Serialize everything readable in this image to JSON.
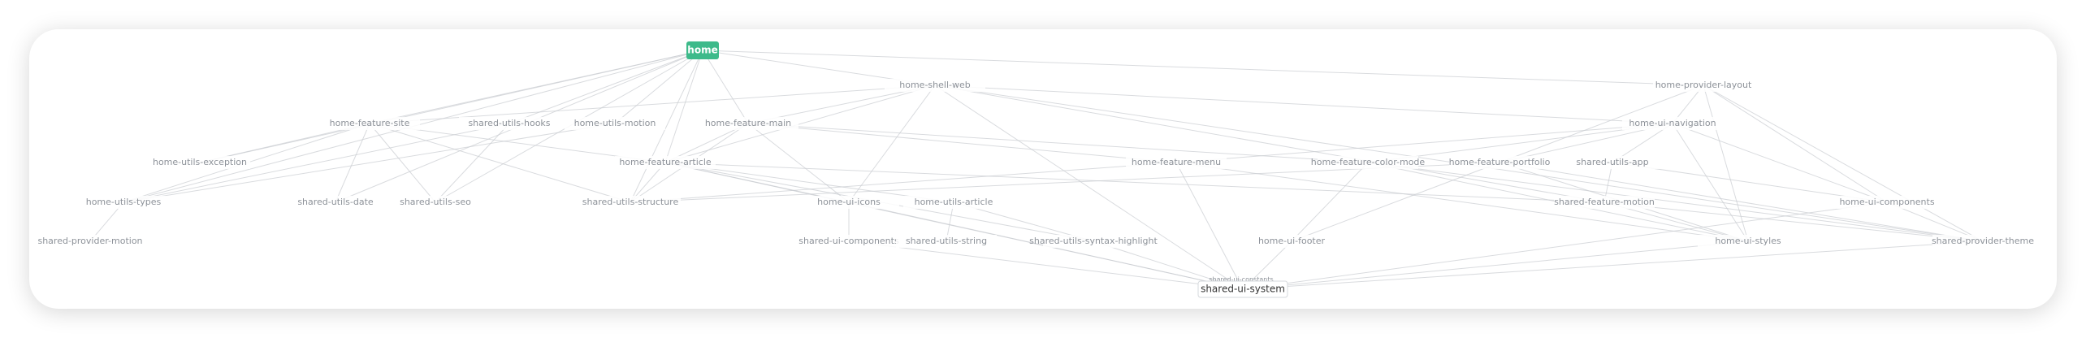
{
  "nodes": [
    "home",
    "home-shell-web",
    "home-provider-layout",
    "home-feature-site",
    "shared-utils-hooks",
    "home-utils-motion",
    "home-feature-main",
    "home-ui-navigation",
    "home-utils-exception",
    "home-feature-article",
    "home-feature-menu",
    "home-feature-color-mode",
    "home-feature-portfolio",
    "shared-utils-app",
    "home-utils-types",
    "shared-utils-date",
    "shared-utils-seo",
    "shared-utils-structure",
    "home-ui-icons",
    "home-utils-article",
    "shared-feature-motion",
    "home-ui-components",
    "shared-provider-motion",
    "shared-ui-components",
    "shared-utils-string",
    "shared-utils-syntax-highlight",
    "home-ui-footer",
    "home-ui-styles",
    "shared-provider-theme",
    "shared-ui-constants",
    "shared-ui-system"
  ]
}
